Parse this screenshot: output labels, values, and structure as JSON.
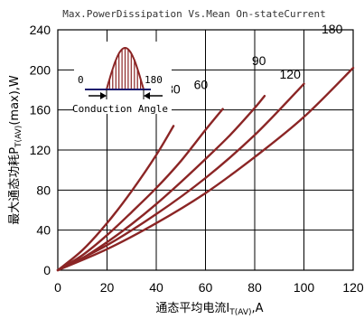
{
  "chart_data": {
    "type": "line",
    "title": "Max.PowerDissipation Vs.Mean On-stateCurrent",
    "xlabel_main": "通态平均电流I",
    "xlabel_sub": "T(AV)",
    "xlabel_unit": ",A",
    "ylabel_main": "最大通态功耗P",
    "ylabel_sub": "T(AV)",
    "ylabel_unit": "(max),W",
    "xlim": [
      0,
      120
    ],
    "ylim": [
      0,
      240
    ],
    "xticks": [
      "0",
      "20",
      "40",
      "60",
      "80",
      "100",
      "120"
    ],
    "yticks": [
      "0",
      "40",
      "80",
      "120",
      "160",
      "200",
      "240"
    ],
    "grid": true,
    "line_color": "#8b2525",
    "series": [
      {
        "name": "30",
        "x": [
          0,
          10,
          20,
          30,
          40,
          47
        ],
        "y": [
          0,
          20,
          47,
          79,
          115,
          144
        ]
      },
      {
        "name": "60",
        "x": [
          0,
          10,
          20,
          30,
          40,
          50,
          60,
          67
        ],
        "y": [
          0,
          15,
          35,
          58,
          82,
          109,
          140,
          161
        ]
      },
      {
        "name": "90",
        "x": [
          0,
          10,
          20,
          30,
          40,
          50,
          60,
          70,
          80,
          84
        ],
        "y": [
          0,
          12,
          28,
          46,
          66,
          88,
          111,
          135,
          162,
          174
        ]
      },
      {
        "name": "120",
        "x": [
          0,
          20,
          40,
          60,
          80,
          100
        ],
        "y": [
          0,
          25,
          56,
          92,
          135,
          186
        ]
      },
      {
        "name": "180",
        "x": [
          0,
          20,
          40,
          60,
          80,
          100,
          120
        ],
        "y": [
          0,
          21,
          47,
          77,
          113,
          153,
          202
        ]
      }
    ],
    "inset": {
      "label_left": "0",
      "label_right": "180",
      "caption": "Conduction Angle"
    }
  }
}
